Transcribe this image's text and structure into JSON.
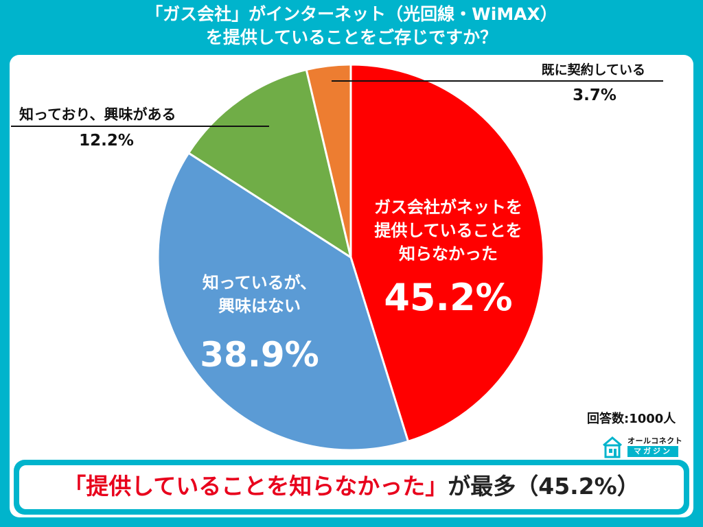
{
  "title": {
    "line1": "「ガス会社」がインターネット（光回線・WiMAX）",
    "line2": "を提供していることをご存じですか？"
  },
  "sample_size": "回答数:1000人",
  "logo": {
    "name": "オールコネクト",
    "sub": "マガジン"
  },
  "footer": {
    "highlight": "「提供していることを知らなかった」",
    "rest": "が最多（45.2%）"
  },
  "colors": {
    "background": "#00B4CC",
    "red": "#FF0000",
    "blue": "#5B9BD5",
    "green": "#70AD47",
    "orange": "#ED7D31"
  },
  "chart_data": {
    "type": "pie",
    "slices": [
      {
        "lines": [
          "ガス会社がネットを",
          "提供していることを",
          "知らなかった"
        ],
        "value": 45.2,
        "value_label": "45.2%",
        "color": "#FF0000",
        "label_style": "inside"
      },
      {
        "lines": [
          "知っているが、",
          "興味はない"
        ],
        "value": 38.9,
        "value_label": "38.9%",
        "color": "#5B9BD5",
        "label_style": "inside"
      },
      {
        "lines": [
          "知っており、興味がある"
        ],
        "value": 12.2,
        "value_label": "12.2%",
        "color": "#70AD47",
        "label_style": "leader-left"
      },
      {
        "lines": [
          "既に契約している"
        ],
        "value": 3.7,
        "value_label": "3.7%",
        "color": "#ED7D31",
        "label_style": "leader-right"
      }
    ]
  }
}
